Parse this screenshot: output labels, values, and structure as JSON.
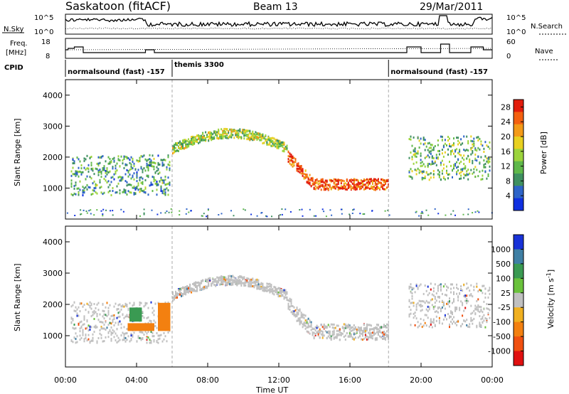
{
  "header": {
    "station": "Saskatoon (fitACF)",
    "beam": "Beam 13",
    "date": "29/Mar/2011"
  },
  "noise_panel": {
    "left_label": "N.Sky",
    "left_ticks": [
      "10^5",
      "10^0"
    ],
    "right_ticks": [
      "10^5",
      "10^0"
    ],
    "right_label": "N.Search"
  },
  "freq_panel": {
    "left_label_1": "Freq.",
    "left_label_2": "[MHz]",
    "left_ticks": [
      "18",
      "8"
    ],
    "right_ticks": [
      "60",
      "0"
    ],
    "right_label": "Nave"
  },
  "cpid": {
    "label": "CPID",
    "segments": [
      {
        "name": "normalsound (fast) -157",
        "start_h": 0.0
      },
      {
        "name": "themis 3300",
        "start_h": 6.0
      },
      {
        "name": "normalsound (fast) -157",
        "start_h": 18.17
      }
    ]
  },
  "chart_data": [
    {
      "type": "heatmap",
      "title": "Power",
      "xlabel": "Time UT",
      "ylabel": "Slant Range [km]",
      "xlim": [
        0,
        24
      ],
      "ylim": [
        0,
        4500
      ],
      "x_ticks": [
        "00:00",
        "04:00",
        "08:00",
        "12:00",
        "16:00",
        "20:00",
        "00:00"
      ],
      "y_ticks": [
        1000,
        2000,
        3000,
        4000
      ],
      "colorbar": {
        "label": "Power [dB]",
        "ticks": [
          4,
          8,
          12,
          16,
          20,
          24,
          28
        ],
        "range": [
          0,
          30
        ],
        "colors": [
          "#1030e0",
          "#2e64c8",
          "#3f9060",
          "#5fb84a",
          "#9cd43c",
          "#e8d020",
          "#f39a18",
          "#f46010",
          "#e21c0c"
        ]
      },
      "echo_bands": [
        {
          "t0": 0.3,
          "t1": 5.9,
          "r_center": 1450,
          "r_width": 1300,
          "value": 10
        },
        {
          "t0": 6.0,
          "t1": 12.5,
          "r_center": 2800,
          "r_width": 350,
          "value": 14
        },
        {
          "t0": 12.5,
          "t1": 18.2,
          "r_center": 1150,
          "r_width": 350,
          "value": 26
        },
        {
          "t0": 19.3,
          "t1": 23.9,
          "r_center": 2000,
          "r_width": 1400,
          "value": 12
        }
      ],
      "data_gaps_h": [
        [
          18.3,
          19.1
        ]
      ]
    },
    {
      "type": "heatmap",
      "title": "Velocity",
      "xlabel": "Time UT",
      "ylabel": "Slant Range [km]",
      "xlim": [
        0,
        24
      ],
      "ylim": [
        0,
        4500
      ],
      "x_ticks": [
        "00:00",
        "04:00",
        "08:00",
        "12:00",
        "16:00",
        "20:00",
        "00:00"
      ],
      "y_ticks": [
        1000,
        2000,
        3000,
        4000
      ],
      "colorbar": {
        "label": "Velocity [m s^-1]",
        "ticks": [
          "1000",
          "500",
          "100",
          "25",
          "-25",
          "-100",
          "-500",
          "-1000"
        ],
        "colors": [
          "#1832d8",
          "#3f7fa4",
          "#3a9a52",
          "#6ac23c",
          "#c0c0c0",
          "#f0b020",
          "#f38010",
          "#f05010",
          "#e01010"
        ]
      },
      "ground_scatter_color": "#c0c0c0",
      "patches": [
        {
          "t0": 3.5,
          "t1": 5.0,
          "r0": 1150,
          "r1": 1400,
          "velocity": -100
        },
        {
          "t0": 3.6,
          "t1": 4.3,
          "r0": 1450,
          "r1": 1900,
          "velocity": 100
        },
        {
          "t0": 5.2,
          "t1": 5.9,
          "r0": 1150,
          "r1": 2050,
          "velocity": -100
        }
      ]
    }
  ]
}
